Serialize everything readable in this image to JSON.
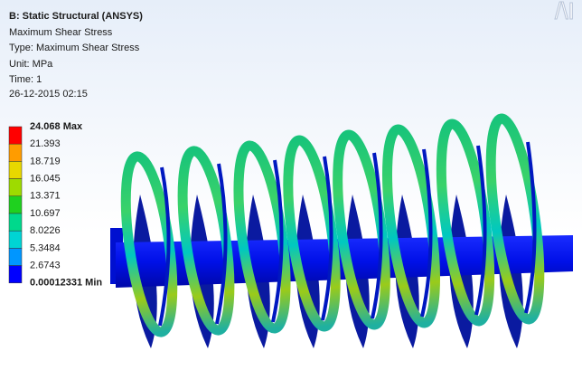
{
  "header": {
    "title": "B: Static Structural (ANSYS)",
    "lines": [
      "Maximum Shear Stress",
      "Type: Maximum Shear Stress",
      "Unit: MPa",
      "Time: 1",
      "26-12-2015 02:15"
    ]
  },
  "legend": {
    "labels": [
      "24.068 Max",
      "21.393",
      "18.719",
      "16.045",
      "13.371",
      "10.697",
      "8.0226",
      "5.3484",
      "2.6743",
      "0.00012331 Min"
    ],
    "colors": [
      "#ff0000",
      "#ff9c00",
      "#e8d800",
      "#9edb00",
      "#1fd11f",
      "#00d98c",
      "#00d4d4",
      "#0096ff",
      "#0000ff"
    ]
  }
}
